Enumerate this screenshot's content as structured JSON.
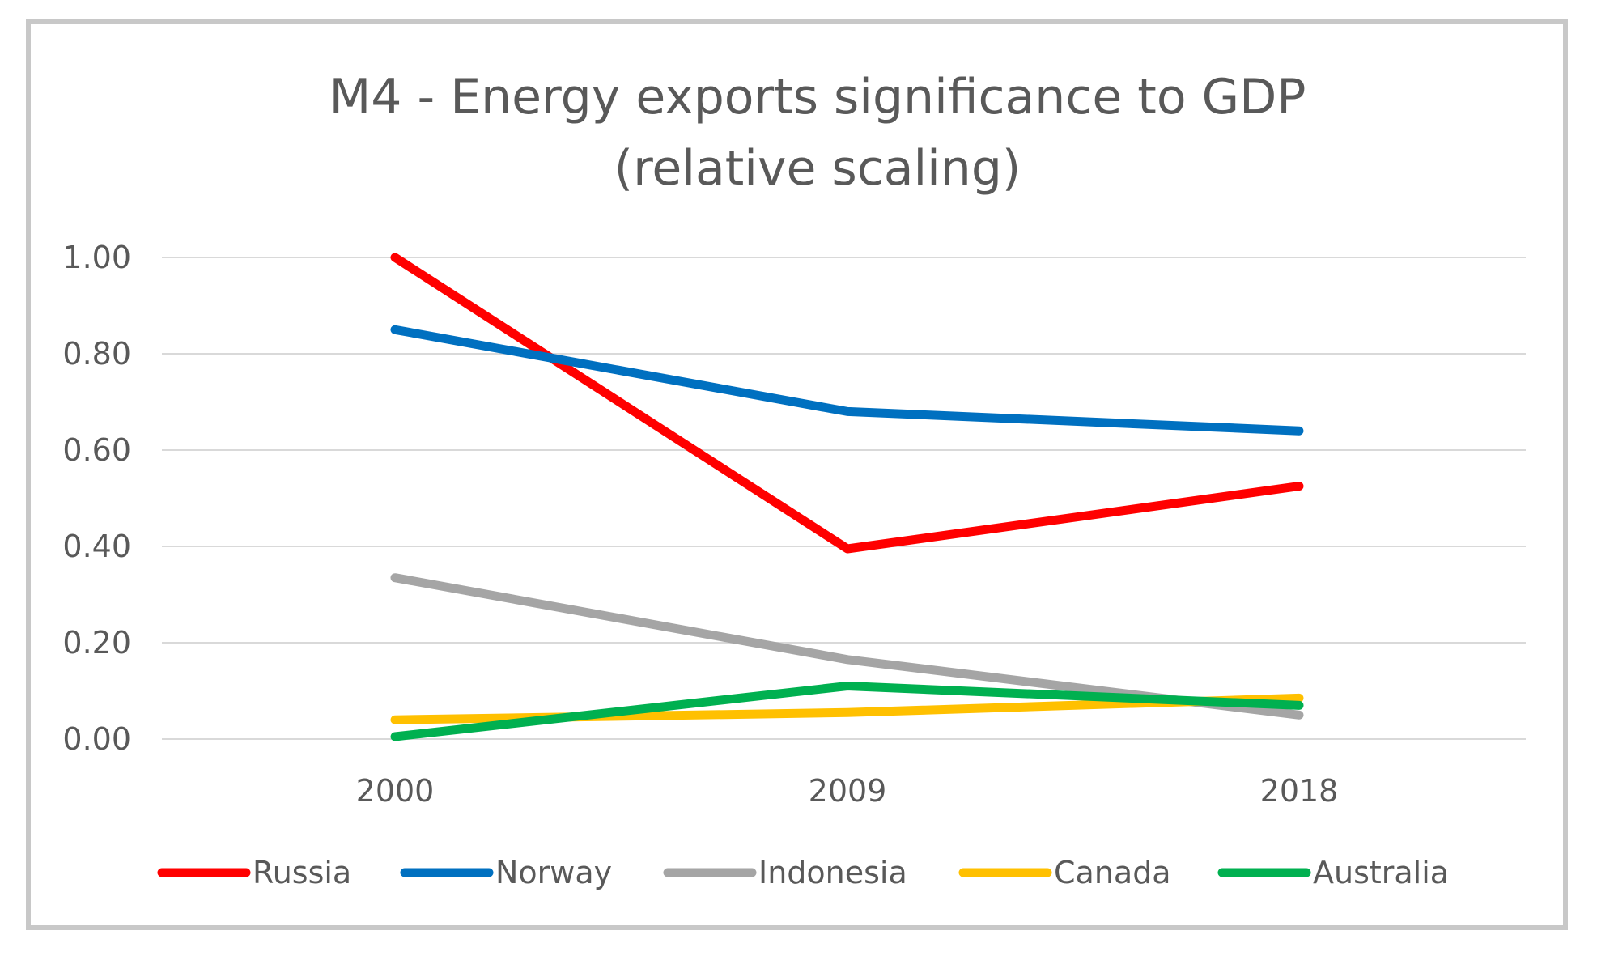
{
  "chart_data": {
    "type": "line",
    "title_lines": [
      "M4 - Energy exports significance to GDP",
      "(relative scaling)"
    ],
    "categories": [
      "2000",
      "2009",
      "2018"
    ],
    "ylim": [
      0,
      1
    ],
    "y_ticks": [
      0,
      0.2,
      0.4,
      0.6,
      0.8,
      1.0
    ],
    "y_tick_labels": [
      "0.00",
      "0.20",
      "0.40",
      "0.60",
      "0.80",
      "1.00"
    ],
    "grid": true,
    "xlabel": "",
    "ylabel": "",
    "legend_position": "bottom",
    "series": [
      {
        "name": "Russia",
        "color": "#ff0000",
        "values": [
          1.0,
          0.395,
          0.525
        ]
      },
      {
        "name": "Norway",
        "color": "#0070c0",
        "values": [
          0.85,
          0.68,
          0.64
        ]
      },
      {
        "name": "Indonesia",
        "color": "#a5a5a5",
        "values": [
          0.335,
          0.165,
          0.05
        ]
      },
      {
        "name": "Canada",
        "color": "#ffc000",
        "values": [
          0.04,
          0.055,
          0.085
        ]
      },
      {
        "name": "Australia",
        "color": "#00b050",
        "values": [
          0.005,
          0.11,
          0.07
        ]
      }
    ]
  }
}
